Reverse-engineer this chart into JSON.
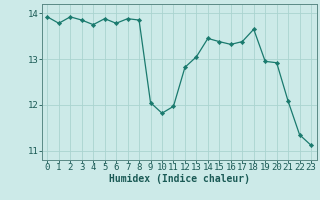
{
  "x": [
    0,
    1,
    2,
    3,
    4,
    5,
    6,
    7,
    8,
    9,
    10,
    11,
    12,
    13,
    14,
    15,
    16,
    17,
    18,
    19,
    20,
    21,
    22,
    23
  ],
  "y": [
    13.92,
    13.78,
    13.92,
    13.85,
    13.75,
    13.88,
    13.78,
    13.88,
    13.85,
    12.05,
    11.82,
    11.97,
    12.82,
    13.05,
    13.45,
    13.38,
    13.32,
    13.38,
    13.65,
    12.95,
    12.92,
    12.08,
    11.35,
    11.12
  ],
  "line_color": "#1a7a6e",
  "marker_color": "#1a7a6e",
  "bg_color": "#cceae8",
  "grid_color": "#aad4d0",
  "axis_color": "#5a8a85",
  "xlabel": "Humidex (Indice chaleur)",
  "ylim": [
    10.8,
    14.2
  ],
  "xlim": [
    -0.5,
    23.5
  ],
  "yticks": [
    11,
    12,
    13,
    14
  ],
  "xticks": [
    0,
    1,
    2,
    3,
    4,
    5,
    6,
    7,
    8,
    9,
    10,
    11,
    12,
    13,
    14,
    15,
    16,
    17,
    18,
    19,
    20,
    21,
    22,
    23
  ],
  "font_color": "#1a5a55",
  "fontsize_label": 7,
  "fontsize_tick": 6.5
}
